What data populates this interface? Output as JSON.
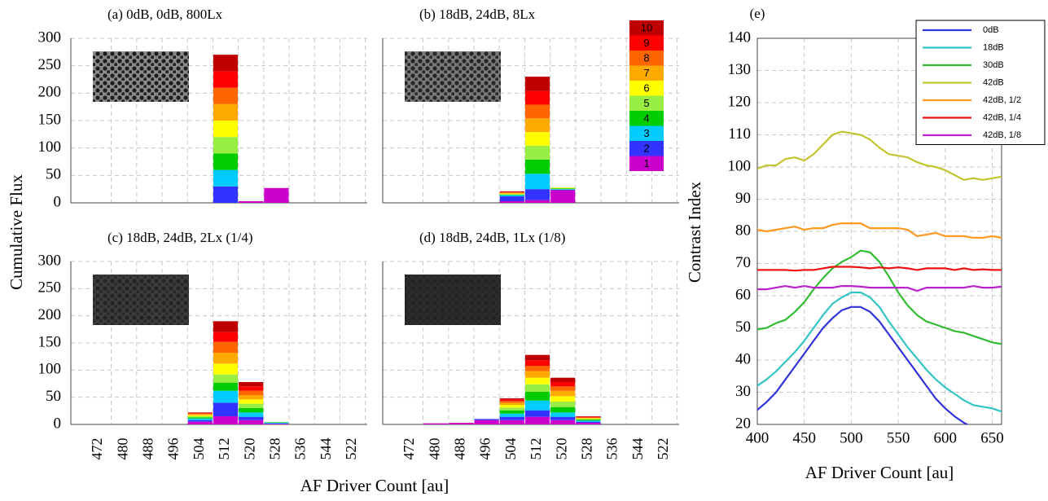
{
  "chart_data": [
    {
      "type": "bar",
      "stacked": true,
      "y_label": "Cumulative Flux",
      "x_label": "AF Driver Count [au]",
      "categories": [
        "472",
        "480",
        "488",
        "496",
        "504",
        "512",
        "520",
        "528",
        "536",
        "544",
        "522"
      ],
      "ylim": [
        0,
        300
      ],
      "yticks": [
        0,
        50,
        100,
        150,
        200,
        250,
        300
      ],
      "grid": true,
      "legend": {
        "labels": [
          "1",
          "2",
          "3",
          "4",
          "5",
          "6",
          "7",
          "8",
          "9",
          "10"
        ],
        "colors": [
          "#cc00cc",
          "#3333ff",
          "#00ccff",
          "#00cc00",
          "#99ee44",
          "#ffff00",
          "#ffaa00",
          "#ff6600",
          "#ff0000",
          "#c00000"
        ]
      },
      "panels": [
        {
          "title": "(a) 0dB, 0dB, 800Lx",
          "series": [
            [
              0,
              0,
              0,
              0,
              0,
              0,
              3,
              27,
              0,
              0,
              0
            ],
            [
              0,
              0,
              0,
              0,
              0,
              30,
              0,
              0,
              0,
              0,
              0
            ],
            [
              0,
              0,
              0,
              0,
              0,
              30,
              0,
              0,
              0,
              0,
              0
            ],
            [
              0,
              0,
              0,
              0,
              0,
              30,
              0,
              0,
              0,
              0,
              0
            ],
            [
              0,
              0,
              0,
              0,
              0,
              30,
              0,
              0,
              0,
              0,
              0
            ],
            [
              0,
              0,
              0,
              0,
              0,
              30,
              0,
              0,
              0,
              0,
              0
            ],
            [
              0,
              0,
              0,
              0,
              0,
              30,
              0,
              0,
              0,
              0,
              0
            ],
            [
              0,
              0,
              0,
              0,
              0,
              30,
              0,
              0,
              0,
              0,
              0
            ],
            [
              0,
              0,
              0,
              0,
              0,
              30,
              0,
              0,
              0,
              0,
              0
            ],
            [
              0,
              0,
              0,
              0,
              0,
              30,
              0,
              0,
              0,
              0,
              0
            ]
          ]
        },
        {
          "title": "(b) 18dB, 24dB, 8Lx",
          "series": [
            [
              0,
              0,
              0,
              0,
              3,
              5,
              23,
              0,
              0,
              0,
              0
            ],
            [
              0,
              0,
              0,
              0,
              9,
              20,
              1,
              0,
              0,
              0,
              0
            ],
            [
              0,
              0,
              0,
              0,
              2,
              28,
              1,
              0,
              0,
              0,
              0
            ],
            [
              0,
              0,
              0,
              0,
              1,
              26,
              1,
              0,
              0,
              0,
              0
            ],
            [
              0,
              0,
              0,
              0,
              1,
              25,
              1,
              0,
              0,
              0,
              0
            ],
            [
              0,
              0,
              0,
              0,
              1,
              25,
              1,
              0,
              0,
              0,
              0
            ],
            [
              0,
              0,
              0,
              0,
              1,
              25,
              0,
              0,
              0,
              0,
              0
            ],
            [
              0,
              0,
              0,
              0,
              1,
              25,
              0,
              0,
              0,
              0,
              0
            ],
            [
              0,
              0,
              0,
              0,
              1,
              25,
              0,
              0,
              0,
              0,
              0
            ],
            [
              0,
              0,
              0,
              0,
              1,
              26,
              0,
              0,
              0,
              0,
              0
            ]
          ]
        },
        {
          "title": "(c) 18dB, 24dB, 2Lx (1/4)",
          "series": [
            [
              0,
              0,
              0,
              0,
              5,
              15,
              8,
              1,
              0,
              0,
              0
            ],
            [
              0,
              0,
              0,
              0,
              3,
              25,
              6,
              1,
              0,
              0,
              0
            ],
            [
              0,
              0,
              0,
              0,
              3,
              22,
              8,
              1,
              0,
              0,
              0
            ],
            [
              0,
              0,
              0,
              0,
              2,
              15,
              8,
              1,
              0,
              0,
              0
            ],
            [
              0,
              0,
              0,
              0,
              2,
              15,
              8,
              0,
              0,
              0,
              0
            ],
            [
              0,
              0,
              0,
              0,
              2,
              20,
              8,
              0,
              0,
              0,
              0
            ],
            [
              0,
              0,
              0,
              0,
              2,
              20,
              8,
              0,
              0,
              0,
              0
            ],
            [
              0,
              0,
              0,
              0,
              1,
              20,
              8,
              0,
              0,
              0,
              0
            ],
            [
              0,
              0,
              0,
              0,
              1,
              18,
              8,
              0,
              0,
              0,
              0
            ],
            [
              0,
              0,
              0,
              0,
              1,
              20,
              8,
              0,
              0,
              0,
              0
            ]
          ]
        },
        {
          "title": "(d) 18dB, 24dB, 1Lx (1/8)",
          "series": [
            [
              0,
              2,
              3,
              8,
              8,
              14,
              8,
              3,
              0,
              0,
              0
            ],
            [
              0,
              0,
              0,
              2,
              6,
              12,
              6,
              2,
              0,
              0,
              0
            ],
            [
              0,
              0,
              0,
              0,
              6,
              18,
              8,
              2,
              0,
              0,
              0
            ],
            [
              0,
              0,
              0,
              0,
              6,
              16,
              10,
              2,
              0,
              0,
              0
            ],
            [
              0,
              0,
              0,
              0,
              5,
              14,
              10,
              1,
              0,
              0,
              0
            ],
            [
              0,
              0,
              0,
              0,
              5,
              12,
              10,
              1,
              0,
              0,
              0
            ],
            [
              0,
              0,
              0,
              0,
              4,
              12,
              10,
              1,
              0,
              0,
              0
            ],
            [
              0,
              0,
              0,
              0,
              3,
              10,
              8,
              1,
              0,
              0,
              0
            ],
            [
              0,
              0,
              0,
              0,
              3,
              10,
              8,
              1,
              0,
              0,
              0
            ],
            [
              0,
              0,
              0,
              0,
              2,
              10,
              8,
              1,
              0,
              0,
              0
            ]
          ]
        }
      ]
    },
    {
      "type": "line",
      "title": "(e)",
      "x_label": "AF Driver Count [au]",
      "y_label": "Contrast Index",
      "x": [
        400,
        410,
        420,
        430,
        440,
        450,
        460,
        470,
        480,
        490,
        500,
        510,
        520,
        530,
        540,
        550,
        560,
        570,
        580,
        590,
        600,
        610,
        620,
        630,
        640,
        650,
        660
      ],
      "xlim": [
        400,
        660
      ],
      "xticks": [
        400,
        450,
        500,
        550,
        600,
        650
      ],
      "ylim": [
        20,
        140
      ],
      "yticks": [
        20,
        30,
        40,
        50,
        60,
        70,
        80,
        90,
        100,
        110,
        120,
        130,
        140
      ],
      "grid": true,
      "legend": "upper right",
      "series": [
        {
          "name": "0dB",
          "color": "#3333dd",
          "values": [
            24.5,
            27,
            30,
            34,
            38,
            42,
            46,
            50,
            53,
            55.5,
            56.5,
            56.5,
            55,
            52,
            48,
            44,
            40,
            36,
            32,
            28,
            25,
            22.5,
            20.5,
            19,
            17.5,
            16,
            15
          ]
        },
        {
          "name": "18dB",
          "color": "#33c4c4",
          "values": [
            32,
            34,
            36.5,
            39.5,
            42.5,
            46,
            50,
            54,
            57.5,
            59.5,
            61,
            61,
            59.5,
            56.5,
            52,
            48,
            44,
            40.5,
            37,
            34,
            31.5,
            29.5,
            27.5,
            26,
            25.5,
            25,
            24
          ]
        },
        {
          "name": "30dB",
          "color": "#33bb33",
          "values": [
            49.5,
            50,
            51.5,
            52.5,
            55,
            58,
            62,
            65.5,
            68.5,
            70.5,
            72,
            74,
            73.5,
            70.5,
            66,
            61,
            57,
            54,
            52,
            51,
            50,
            49,
            48.5,
            47.5,
            46.5,
            45.5,
            45
          ]
        },
        {
          "name": "42dB",
          "color": "#c4c430",
          "values": [
            99.5,
            100.5,
            100.5,
            102.5,
            103,
            102,
            104,
            107,
            110,
            111,
            110.5,
            110,
            108.5,
            106,
            104,
            103.5,
            103,
            101.5,
            100.5,
            100,
            99,
            97.5,
            96,
            96.5,
            96,
            96.5,
            97
          ]
        },
        {
          "name": "42dB, 1/2",
          "color": "#ff9922",
          "values": [
            80.5,
            80,
            80.5,
            81,
            81.5,
            80.5,
            81,
            81,
            82,
            82.5,
            82.5,
            82.5,
            81,
            81,
            81,
            81,
            80.5,
            78.5,
            79,
            79.5,
            78.5,
            78.5,
            78.5,
            78,
            78,
            78.5,
            78
          ]
        },
        {
          "name": "42dB, 1/4",
          "color": "#ee1111",
          "values": [
            68,
            68,
            68,
            68,
            67.8,
            68,
            68,
            68.5,
            69,
            69,
            69,
            68.8,
            68.5,
            68.8,
            68.5,
            68.8,
            68.5,
            68,
            68.5,
            68.5,
            68.5,
            68,
            68.5,
            68,
            68.2,
            68,
            68
          ]
        },
        {
          "name": "42dB, 1/8",
          "color": "#bb22cc",
          "values": [
            62,
            62,
            62.5,
            63,
            62.5,
            63,
            62.5,
            62.5,
            62.5,
            63,
            63,
            62.8,
            62.5,
            62.5,
            62.5,
            62.5,
            62.5,
            61.5,
            62.5,
            62.5,
            62.5,
            62.5,
            62.5,
            63,
            62.5,
            62.5,
            62.8
          ]
        }
      ]
    }
  ]
}
